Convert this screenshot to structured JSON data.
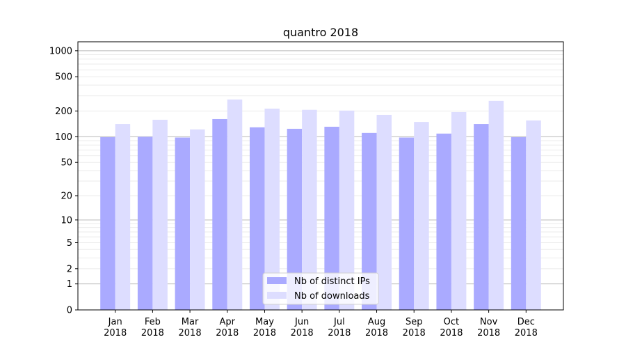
{
  "chart_data": {
    "type": "bar",
    "title": "quantro 2018",
    "xlabel": "",
    "ylabel": "",
    "yscale": "symlog (log10(1+y))",
    "ylim": [
      0,
      1270
    ],
    "yticks": [
      0,
      1,
      2,
      5,
      10,
      20,
      50,
      100,
      200,
      500,
      1000
    ],
    "ytick_labels": [
      "0",
      "1",
      "2",
      "5",
      "10",
      "20",
      "50",
      "100",
      "200",
      "500",
      "1000"
    ],
    "grid": true,
    "legend_position": "bottom-center",
    "categories": [
      [
        "Jan",
        "2018"
      ],
      [
        "Feb",
        "2018"
      ],
      [
        "Mar",
        "2018"
      ],
      [
        "Apr",
        "2018"
      ],
      [
        "May",
        "2018"
      ],
      [
        "Jun",
        "2018"
      ],
      [
        "Jul",
        "2018"
      ],
      [
        "Aug",
        "2018"
      ],
      [
        "Sep",
        "2018"
      ],
      [
        "Oct",
        "2018"
      ],
      [
        "Nov",
        "2018"
      ],
      [
        "Dec",
        "2018"
      ]
    ],
    "series": [
      {
        "name": "Nb of distinct IPs",
        "color": "#aaaaff",
        "values": [
          99,
          100,
          98,
          161,
          129,
          124,
          131,
          111,
          98,
          109,
          141,
          99
        ]
      },
      {
        "name": "Nb of downloads",
        "color": "#ddddff",
        "values": [
          141,
          158,
          122,
          272,
          213,
          206,
          202,
          180,
          149,
          194,
          262,
          155
        ]
      }
    ]
  }
}
